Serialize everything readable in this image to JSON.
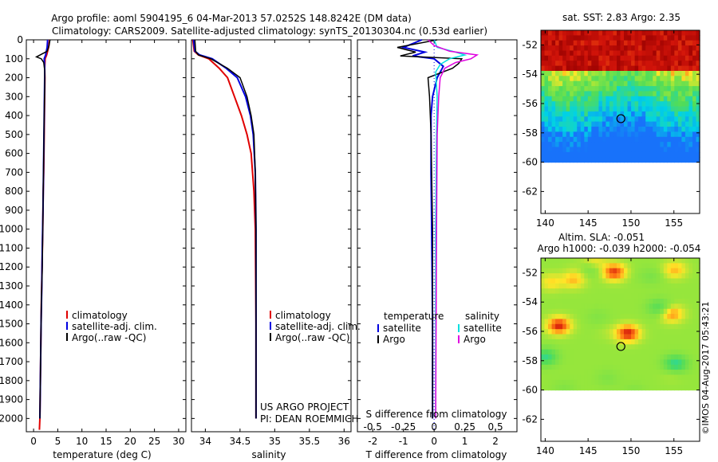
{
  "figure": {
    "title_line1": "Argo profile: aoml 5904195_6 04-Mar-2013 57.0252S 148.8242E (DM data)",
    "title_line2": "Climatology: CARS2009. Satellite-adjusted climatology: synTS_20130304.nc (0.53d earlier)",
    "credit": "©IMOS 04-Aug-2017 05:43:21"
  },
  "colors": {
    "climatology": "#e00000",
    "satellite": "#0000e0",
    "argo": "#000000",
    "salinity_satellite": "#00e0e0",
    "salinity_argo": "#e000e0"
  },
  "chart_data": [
    {
      "id": "temperature",
      "type": "line",
      "xlabel": "temperature (deg C)",
      "ylabel": "",
      "xlim": [
        -1.5,
        31.5
      ],
      "ylim": [
        2070,
        0
      ],
      "xticks": [
        0,
        5,
        10,
        15,
        20,
        25,
        30
      ],
      "xticklabels": [
        "0",
        "5",
        "10",
        "15",
        "20",
        "25",
        "30"
      ],
      "yticks": [
        0,
        100,
        200,
        300,
        400,
        500,
        600,
        700,
        800,
        900,
        1000,
        1100,
        1200,
        1300,
        1400,
        1500,
        1600,
        1700,
        1800,
        1900,
        2000
      ],
      "legend": [
        "climatology",
        "satellite-adj. clim.",
        "Argo(..raw -QC)"
      ],
      "series": [
        {
          "name": "climatology",
          "x": [
            3.3,
            3.1,
            2.7,
            2.4,
            2.3,
            2.35,
            2.3,
            2.2,
            2.1,
            2.0,
            1.9,
            1.75,
            1.6,
            1.5,
            1.4,
            1.3,
            1.2
          ],
          "y": [
            0,
            40,
            80,
            100,
            150,
            200,
            300,
            500,
            700,
            800,
            1000,
            1200,
            1400,
            1600,
            1800,
            2000,
            2060
          ]
        },
        {
          "name": "satellite-adj. clim.",
          "x": [
            2.9,
            2.8,
            2.5,
            2.2,
            2.3,
            2.3,
            2.25,
            2.15,
            2.05,
            1.95,
            1.8,
            1.7,
            1.55,
            1.45,
            1.35,
            1.3
          ],
          "y": [
            0,
            40,
            80,
            100,
            150,
            200,
            300,
            500,
            700,
            900,
            1100,
            1300,
            1500,
            1700,
            1900,
            2000
          ]
        },
        {
          "name": "Argo(..raw -QC)",
          "x": [
            3.4,
            3.2,
            2.8,
            0.6,
            1.6,
            2.1,
            2.3,
            2.3,
            2.2,
            2.1,
            2.0,
            1.9,
            1.8,
            1.6,
            1.5,
            1.4,
            1.3
          ],
          "y": [
            0,
            30,
            60,
            90,
            100,
            120,
            160,
            250,
            400,
            600,
            800,
            1000,
            1200,
            1400,
            1600,
            1800,
            2000
          ]
        }
      ]
    },
    {
      "id": "salinity",
      "type": "line",
      "xlabel": "salinity",
      "xlim": [
        33.8,
        36.1
      ],
      "ylim": [
        2070,
        0
      ],
      "xticks": [
        34,
        34.5,
        35,
        35.5,
        36
      ],
      "xticklabels": [
        "34",
        "34.5",
        "35",
        "35.5",
        "36"
      ],
      "legend": [
        "climatology",
        "satellite-adj. clim.",
        "Argo(..raw -QC)"
      ],
      "annotation_line1": "US ARGO PROJECT",
      "annotation_line2": "PI: DEAN ROEMMICH",
      "series": [
        {
          "name": "climatology",
          "x": [
            33.82,
            33.84,
            33.9,
            34.05,
            34.2,
            34.32,
            34.42,
            34.52,
            34.6,
            34.66,
            34.7,
            34.72,
            34.73,
            34.73
          ],
          "y": [
            0,
            60,
            80,
            100,
            150,
            200,
            300,
            400,
            500,
            600,
            800,
            1000,
            1500,
            2000
          ]
        },
        {
          "name": "satellite-adj. clim.",
          "x": [
            33.83,
            33.85,
            33.92,
            34.1,
            34.3,
            34.46,
            34.58,
            34.65,
            34.69,
            34.72,
            34.73,
            34.73
          ],
          "y": [
            0,
            60,
            80,
            100,
            150,
            200,
            300,
            400,
            500,
            700,
            1000,
            2000
          ]
        },
        {
          "name": "Argo(..raw -QC)",
          "x": [
            33.85,
            33.86,
            33.9,
            34.08,
            34.32,
            34.5,
            34.6,
            34.66,
            34.7,
            34.72,
            34.73,
            34.73
          ],
          "y": [
            0,
            60,
            80,
            100,
            150,
            200,
            300,
            400,
            500,
            700,
            1000,
            2000
          ]
        }
      ]
    },
    {
      "id": "difference",
      "type": "line",
      "xlabel": "T difference from climatology",
      "xlabel_top": "S difference from climatology",
      "xlim": [
        -2.5,
        2.7
      ],
      "ylim": [
        2070,
        0
      ],
      "xticks": [
        -2,
        -1,
        0,
        1,
        2
      ],
      "xticklabels": [
        "-2",
        "-1",
        "0",
        "1",
        "2"
      ],
      "s_scale": 4,
      "s_ticks": [
        -0.5,
        -0.25,
        0,
        0.25,
        0.5
      ],
      "s_ticklabels": [
        "-0.5",
        "-0.25",
        "0",
        "0.25",
        "0.5"
      ],
      "legend_temperature_title": "temperature",
      "legend_salinity_title": "salinity",
      "legend_temperature": [
        "satellite",
        "Argo"
      ],
      "legend_salinity": [
        "satellite",
        "Argo"
      ],
      "series": [
        {
          "name": "T satellite",
          "x": [
            -0.4,
            -1.0,
            -0.3,
            -0.7,
            0.0,
            0.3,
            0.1,
            -0.05,
            -0.1,
            -0.1,
            -0.08,
            -0.05,
            -0.05
          ],
          "y": [
            0,
            40,
            65,
            85,
            100,
            140,
            200,
            300,
            400,
            700,
            1000,
            1500,
            2000
          ]
        },
        {
          "name": "T Argo",
          "x": [
            0.1,
            -1.2,
            -0.6,
            -1.1,
            0.9,
            0.8,
            0.6,
            -0.2,
            -0.15,
            -0.1,
            -0.05,
            -0.05
          ],
          "y": [
            0,
            40,
            65,
            85,
            100,
            125,
            150,
            200,
            300,
            500,
            1000,
            2000
          ]
        },
        {
          "name": "S satellite",
          "x": [
            0.0,
            0.1,
            0.6,
            1.0,
            0.5,
            0.2,
            0.05,
            0.1,
            0.08,
            0.05,
            0.05
          ],
          "y": [
            0,
            40,
            60,
            80,
            100,
            130,
            170,
            300,
            500,
            1000,
            2000
          ]
        },
        {
          "name": "S Argo",
          "x": [
            -0.2,
            0.0,
            0.5,
            1.4,
            1.2,
            0.7,
            0.35,
            0.2,
            0.15,
            0.1,
            0.08,
            0.05
          ],
          "y": [
            0,
            30,
            60,
            80,
            100,
            120,
            150,
            200,
            300,
            500,
            1000,
            2000
          ]
        }
      ]
    },
    {
      "id": "sst_map",
      "type": "heatmap",
      "title": "sat. SST: 2.83 Argo: 2.35",
      "xlim": [
        139.5,
        158
      ],
      "ylim": [
        -63.5,
        -51
      ],
      "xticks": [
        140,
        145,
        150,
        155
      ],
      "xticklabels": [
        "140",
        "145",
        "150",
        "155"
      ],
      "yticks": [
        -52,
        -54,
        -56,
        -58,
        -60,
        -62
      ],
      "yticklabels": [
        "-52",
        "-54",
        "-56",
        "-58",
        "-60",
        "-62"
      ],
      "data_extent_lat": [
        -60,
        -51
      ],
      "marker": {
        "lon": 148.82,
        "lat": -57.03
      }
    },
    {
      "id": "sla_map",
      "type": "heatmap",
      "title_line1": "Altim. SLA: -0.051",
      "title_line2": "Argo h1000: -0.039 h2000: -0.054",
      "xlim": [
        139.5,
        158
      ],
      "ylim": [
        -63.5,
        -51
      ],
      "xticks": [
        140,
        145,
        150,
        155
      ],
      "xticklabels": [
        "140",
        "145",
        "150",
        "155"
      ],
      "yticks": [
        -52,
        -54,
        -56,
        -58,
        -60,
        -62
      ],
      "yticklabels": [
        "-52",
        "-54",
        "-56",
        "-58",
        "-60",
        "-62"
      ],
      "data_extent_lat": [
        -60,
        -51
      ],
      "marker": {
        "lon": 148.82,
        "lat": -57.03
      }
    }
  ]
}
